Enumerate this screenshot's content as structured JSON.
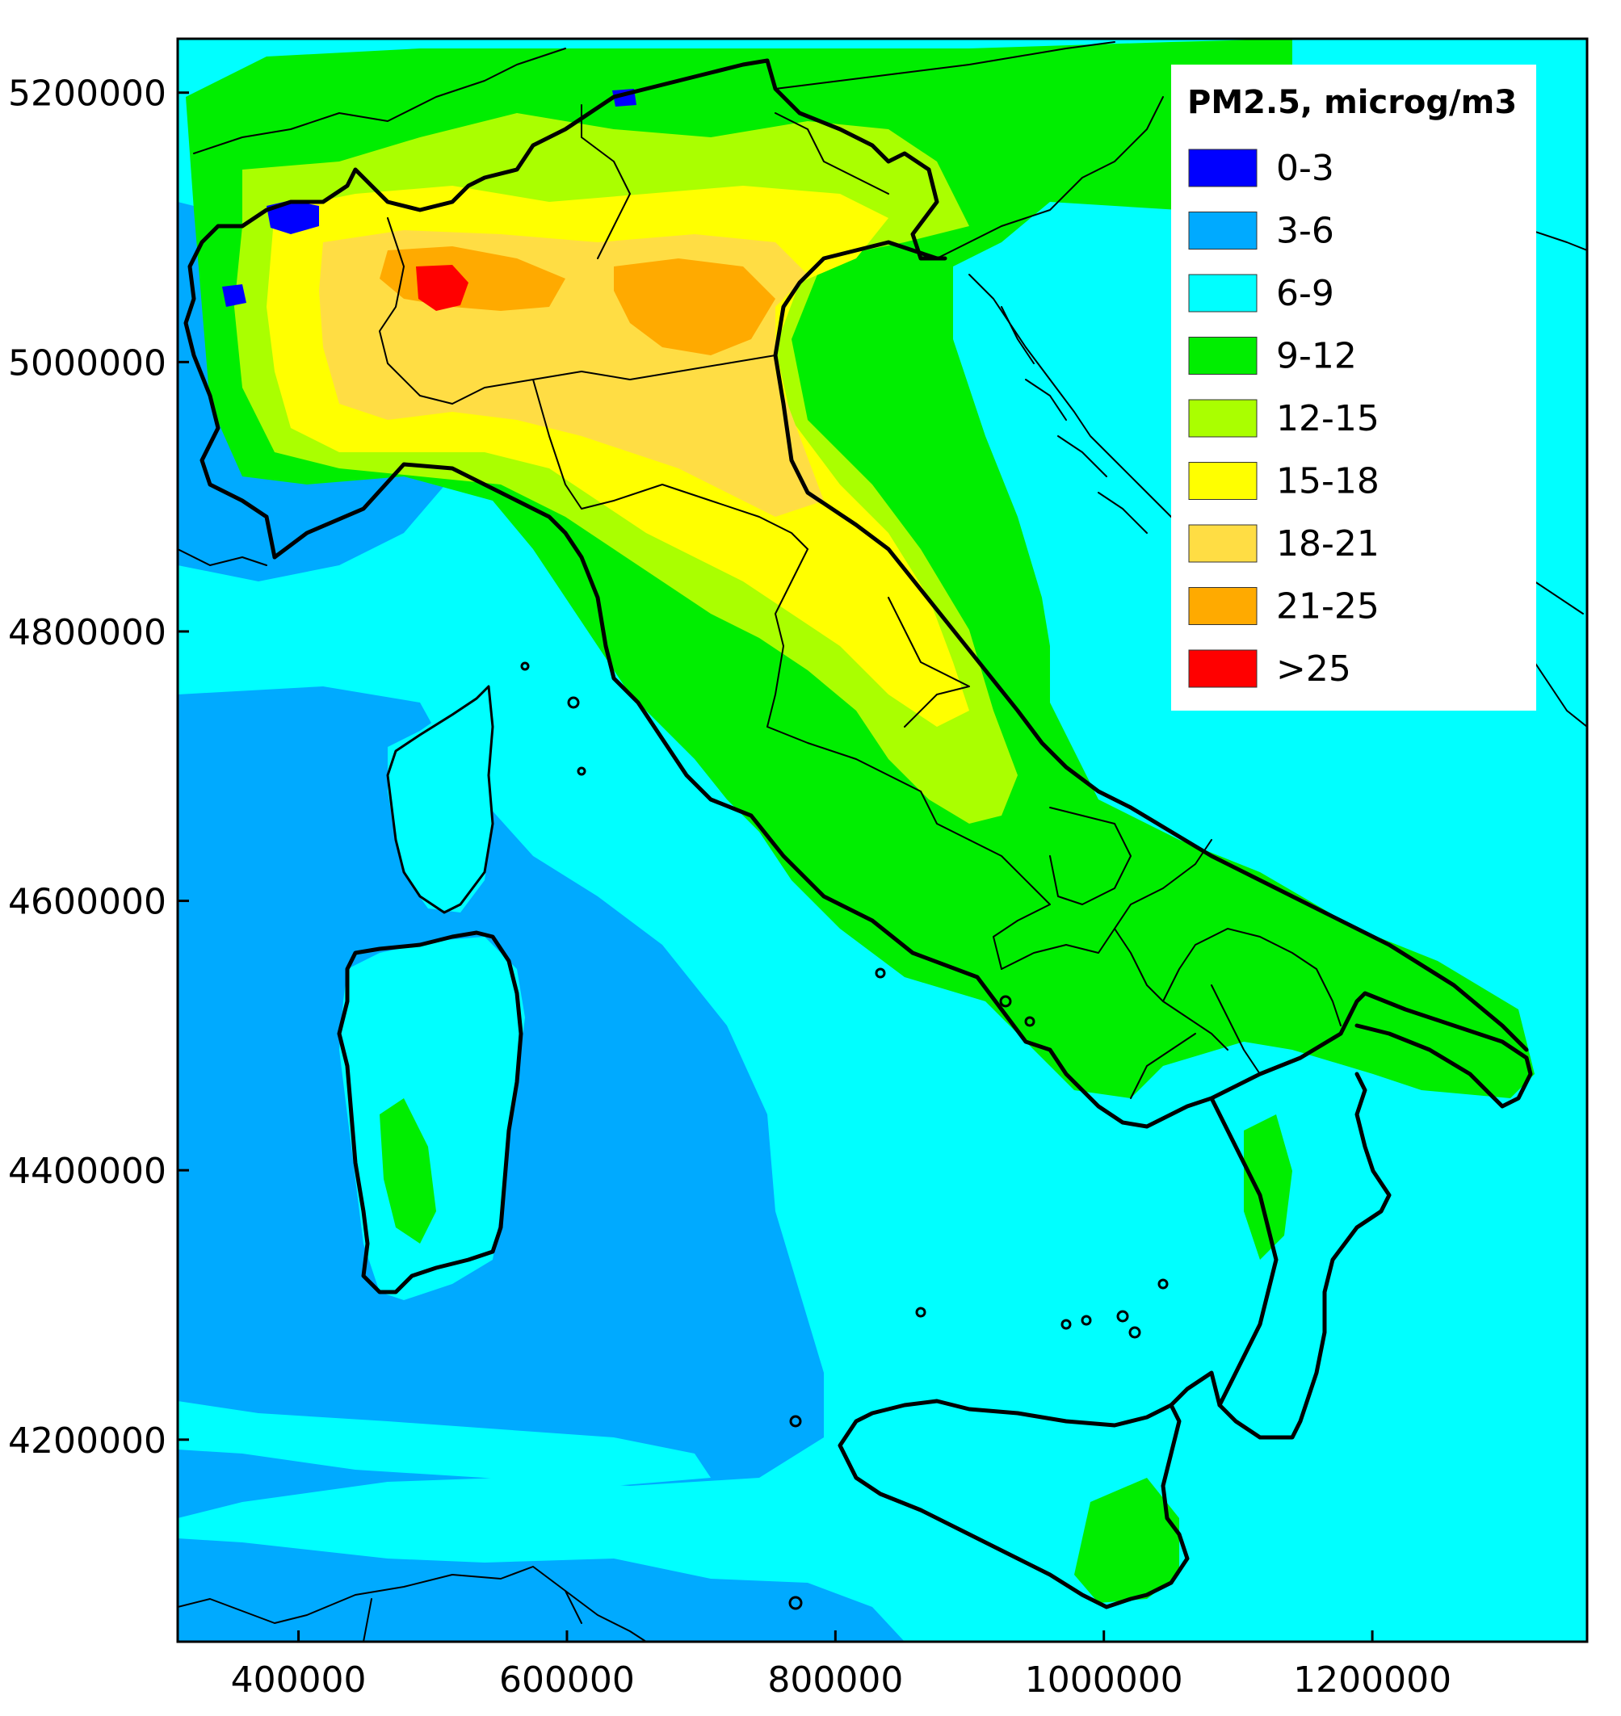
{
  "map": {
    "x_axis": {
      "ticks": [
        "400000",
        "600000",
        "800000",
        "1000000",
        "1200000"
      ],
      "values": [
        400000,
        600000,
        800000,
        1000000,
        1200000
      ],
      "range": [
        310000,
        1360000
      ]
    },
    "y_axis": {
      "ticks": [
        "5200000",
        "5000000",
        "4800000",
        "4600000",
        "4400000",
        "4200000"
      ],
      "values": [
        5200000,
        5000000,
        4800000,
        4600000,
        4400000,
        4200000
      ],
      "range": [
        4050000,
        5240000
      ]
    }
  },
  "legend": {
    "title": "PM2.5, microg/m3",
    "placement": "top-right",
    "items": [
      {
        "label": "0-3",
        "color": "#0000FF"
      },
      {
        "label": "3-6",
        "color": "#00AAFF"
      },
      {
        "label": "6-9",
        "color": "#00FFFF"
      },
      {
        "label": "9-12",
        "color": "#00EE00"
      },
      {
        "label": "12-15",
        "color": "#AAFF00"
      },
      {
        "label": "15-18",
        "color": "#FFFF00"
      },
      {
        "label": "18-21",
        "color": "#FFDD44"
      },
      {
        "label": "21-25",
        "color": "#FFAA00"
      },
      {
        "label": ">25",
        "color": "#FF0000"
      }
    ]
  }
}
